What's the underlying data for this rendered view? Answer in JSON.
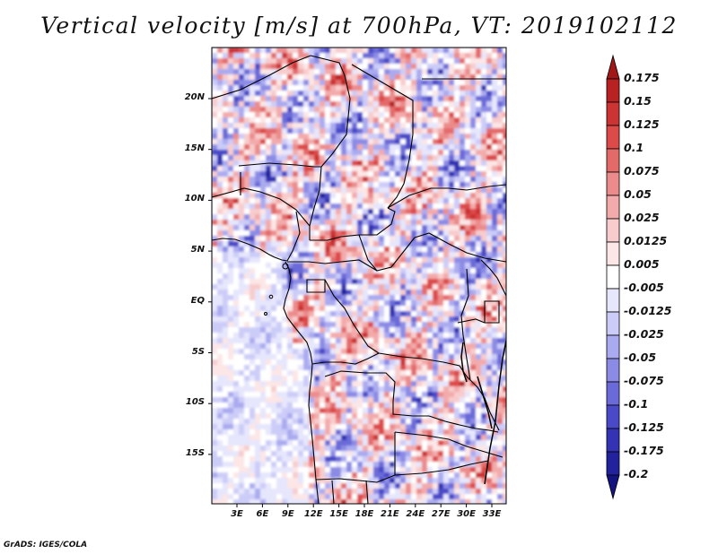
{
  "title": "Vertical velocity [m/s] at 700hPa, VT: 2019102112",
  "map": {
    "lat_labels": [
      "20N",
      "15N",
      "10N",
      "5N",
      "EQ",
      "5S",
      "10S",
      "15S"
    ],
    "lon_labels": [
      "3E",
      "6E",
      "9E",
      "12E",
      "15E",
      "18E",
      "21E",
      "24E",
      "27E",
      "30E",
      "33E"
    ]
  },
  "colorbar": {
    "labels": [
      "0.175",
      "0.15",
      "0.125",
      "0.1",
      "0.075",
      "0.05",
      "0.025",
      "0.0125",
      "0.005",
      "-0.005",
      "-0.0125",
      "-0.025",
      "-0.05",
      "-0.075",
      "-0.1",
      "-0.125",
      "-0.175",
      "-0.2"
    ],
    "colors": [
      "#a01818",
      "#b82222",
      "#cc3333",
      "#dd4a4a",
      "#e46a6a",
      "#ec8b8b",
      "#f3aaaa",
      "#f8cccc",
      "#fce6e6",
      "#ffffff",
      "#e6e6fc",
      "#ccccf8",
      "#aaaaf0",
      "#8b8be6",
      "#6a6ad8",
      "#4a4ac8",
      "#3333b4",
      "#22229c",
      "#141480"
    ]
  },
  "credit": "GrADS: IGES/COLA"
}
